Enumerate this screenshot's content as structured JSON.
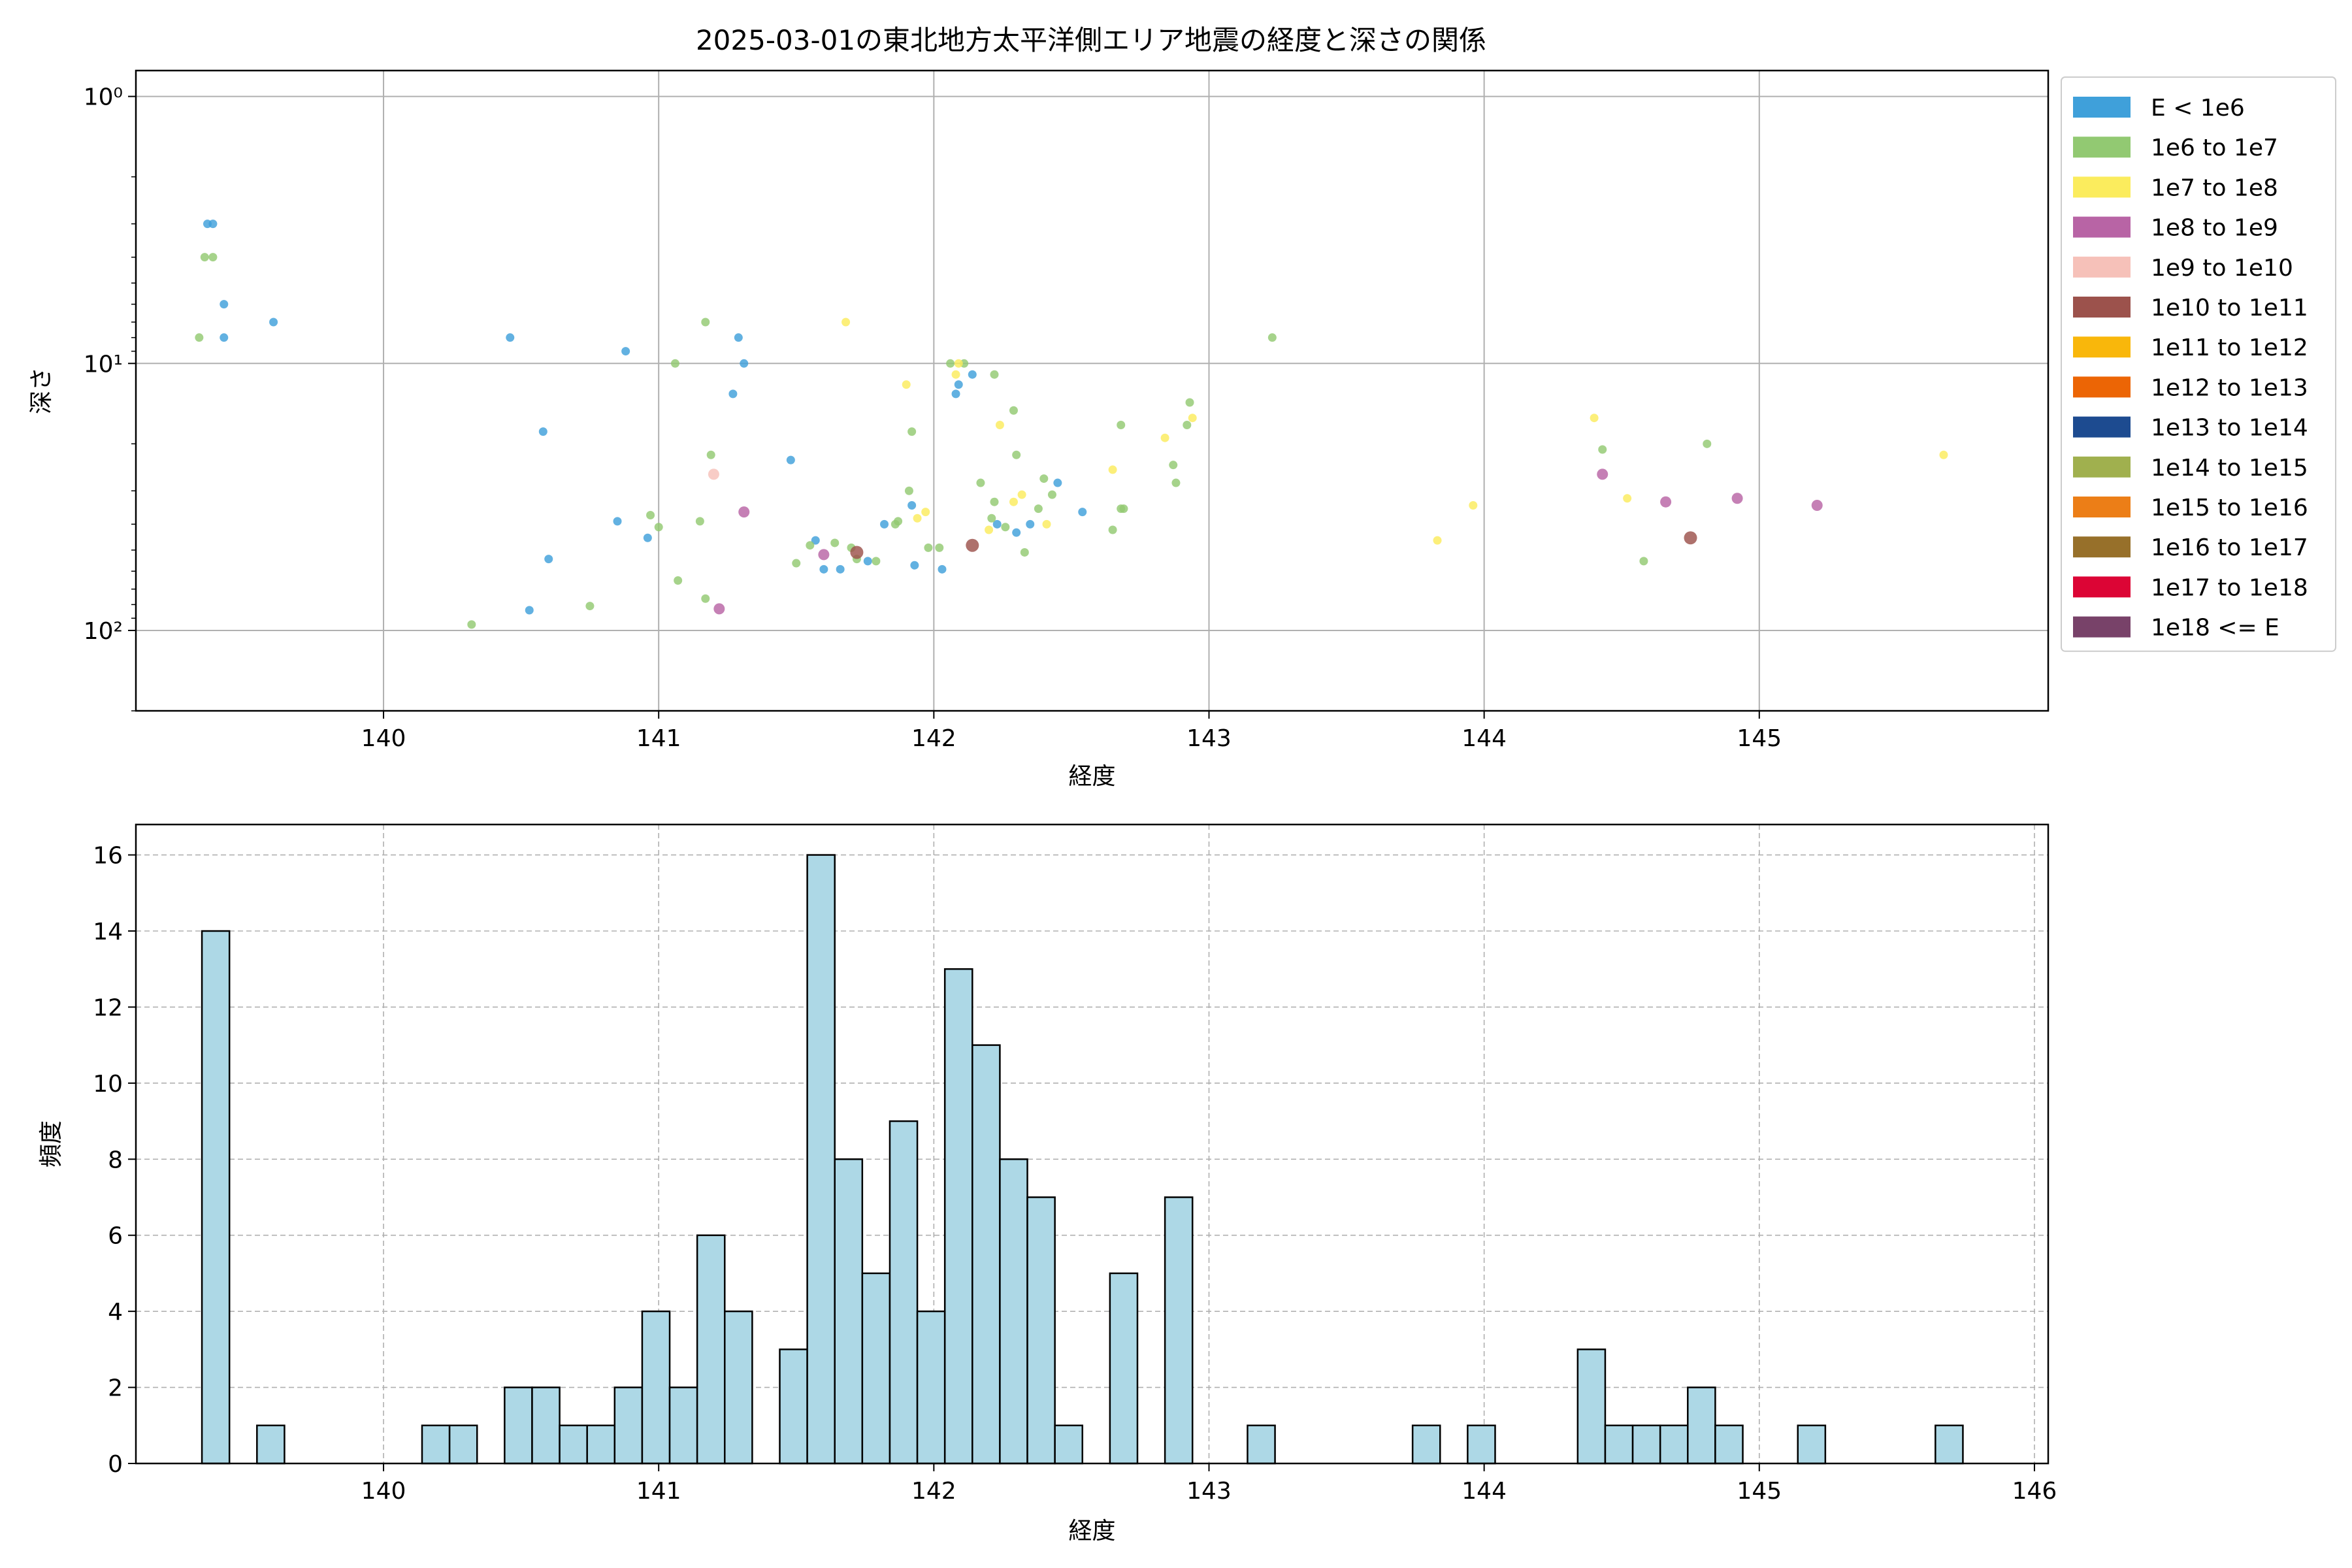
{
  "figure_title": "2025-03-01の東北地方太平洋側エリア地震の経度と深さの関係",
  "chart_data": [
    {
      "type": "scatter",
      "title": "2025-03-01の東北地方太平洋側エリア地震の経度と深さの関係",
      "xlabel": "経度",
      "ylabel": "深さ",
      "xlim": [
        139.1,
        146.05
      ],
      "ylim": [
        200,
        0.8
      ],
      "yscale": "log",
      "y_inverted": true,
      "grid": true,
      "legend_position": "outside-right-top",
      "xticks": [
        140,
        141,
        142,
        143,
        144,
        145
      ],
      "yticks": [
        {
          "value": 1,
          "label": "10⁰"
        },
        {
          "value": 10,
          "label": "10¹"
        },
        {
          "value": 100,
          "label": "10²"
        }
      ],
      "legend": [
        {
          "label": "E < 1e6",
          "color": "#3fa0da"
        },
        {
          "label": "1e6 to 1e7",
          "color": "#92c972"
        },
        {
          "label": "1e7 to 1e8",
          "color": "#fbec5d"
        },
        {
          "label": "1e8 to 1e9",
          "color": "#b864a5"
        },
        {
          "label": "1e9 to 1e10",
          "color": "#f6c1b9"
        },
        {
          "label": "1e10 to 1e11",
          "color": "#9c524c"
        },
        {
          "label": "1e11 to 1e12",
          "color": "#f9b70b"
        },
        {
          "label": "1e12 to 1e13",
          "color": "#ec6505"
        },
        {
          "label": "1e13 to 1e14",
          "color": "#1d4b90"
        },
        {
          "label": "1e14 to 1e15",
          "color": "#a0b04e"
        },
        {
          "label": "1e15 to 1e16",
          "color": "#ec7e17"
        },
        {
          "label": "1e16 to 1e17",
          "color": "#97702a"
        },
        {
          "label": "1e17 to 1e18",
          "color": "#dc0535"
        },
        {
          "label": "1e18 <= E",
          "color": "#784269"
        }
      ],
      "series": [
        {
          "name": "E < 1e6",
          "points": [
            [
              139.36,
              3.0
            ],
            [
              139.38,
              3.0
            ],
            [
              139.42,
              6.0
            ],
            [
              139.42,
              8.0
            ],
            [
              139.6,
              7.0
            ],
            [
              140.46,
              8.0
            ],
            [
              140.58,
              18.0
            ],
            [
              140.88,
              9.0
            ],
            [
              140.85,
              39.0
            ],
            [
              140.96,
              45.0
            ],
            [
              141.27,
              13.0
            ],
            [
              141.29,
              8.0
            ],
            [
              141.31,
              10.0
            ],
            [
              140.53,
              84.0
            ],
            [
              140.6,
              54.0
            ],
            [
              141.48,
              23.0
            ],
            [
              141.57,
              46.0
            ],
            [
              141.6,
              59.0
            ],
            [
              141.66,
              59.0
            ],
            [
              141.76,
              55.0
            ],
            [
              141.82,
              40.0
            ],
            [
              141.92,
              34.0
            ],
            [
              141.93,
              57.0
            ],
            [
              142.03,
              59.0
            ],
            [
              142.08,
              13.0
            ],
            [
              142.09,
              12.0
            ],
            [
              142.14,
              11.0
            ],
            [
              142.35,
              40.0
            ],
            [
              142.45,
              28.0
            ],
            [
              142.54,
              36.0
            ],
            [
              142.23,
              40.0
            ],
            [
              142.3,
              43.0
            ]
          ]
        },
        {
          "name": "1e6 to 1e7",
          "points": [
            [
              139.33,
              8.0
            ],
            [
              139.35,
              4.0
            ],
            [
              139.38,
              4.0
            ],
            [
              140.32,
              95.0
            ],
            [
              140.75,
              81.0
            ],
            [
              141.0,
              41.0
            ],
            [
              141.06,
              10.0
            ],
            [
              140.97,
              37.0
            ],
            [
              141.07,
              65.0
            ],
            [
              141.15,
              39.0
            ],
            [
              141.17,
              7.0
            ],
            [
              141.19,
              22.0
            ],
            [
              141.17,
              76.0
            ],
            [
              141.5,
              56.0
            ],
            [
              141.55,
              48.0
            ],
            [
              141.64,
              47.0
            ],
            [
              141.7,
              49.0
            ],
            [
              141.72,
              54.0
            ],
            [
              141.79,
              55.0
            ],
            [
              141.87,
              39.0
            ],
            [
              141.86,
              40.0
            ],
            [
              141.92,
              18.0
            ],
            [
              141.91,
              30.0
            ],
            [
              141.98,
              49.0
            ],
            [
              142.02,
              49.0
            ],
            [
              142.06,
              10.0
            ],
            [
              142.11,
              10.0
            ],
            [
              142.17,
              28.0
            ],
            [
              142.21,
              38.0
            ],
            [
              142.22,
              11.0
            ],
            [
              142.22,
              33.0
            ],
            [
              142.26,
              41.0
            ],
            [
              142.29,
              15.0
            ],
            [
              142.3,
              22.0
            ],
            [
              142.38,
              35.0
            ],
            [
              142.4,
              27.0
            ],
            [
              142.43,
              31.0
            ],
            [
              142.33,
              51.0
            ],
            [
              142.65,
              42.0
            ],
            [
              142.68,
              17.0
            ],
            [
              142.69,
              35.0
            ],
            [
              142.68,
              35.0
            ],
            [
              142.87,
              24.0
            ],
            [
              142.88,
              28.0
            ],
            [
              142.92,
              17.0
            ],
            [
              142.93,
              14.0
            ],
            [
              143.23,
              8.0
            ],
            [
              144.43,
              21.0
            ],
            [
              144.58,
              55.0
            ],
            [
              144.81,
              20.0
            ]
          ]
        },
        {
          "name": "1e7 to 1e8",
          "points": [
            [
              141.68,
              7.0
            ],
            [
              141.9,
              12.0
            ],
            [
              141.94,
              38.0
            ],
            [
              141.97,
              36.0
            ],
            [
              142.08,
              11.0
            ],
            [
              142.09,
              10.0
            ],
            [
              142.2,
              42.0
            ],
            [
              142.24,
              17.0
            ],
            [
              142.29,
              33.0
            ],
            [
              142.32,
              31.0
            ],
            [
              142.41,
              40.0
            ],
            [
              142.65,
              25.0
            ],
            [
              142.84,
              19.0
            ],
            [
              142.94,
              16.0
            ],
            [
              143.83,
              46.0
            ],
            [
              143.96,
              34.0
            ],
            [
              144.4,
              16.0
            ],
            [
              144.52,
              32.0
            ],
            [
              145.67,
              22.0
            ]
          ]
        },
        {
          "name": "1e8 to 1e9",
          "points": [
            [
              141.22,
              83.0
            ],
            [
              141.31,
              36.0
            ],
            [
              141.6,
              52.0
            ],
            [
              144.43,
              26.0
            ],
            [
              144.66,
              33.0
            ],
            [
              144.92,
              32.0
            ],
            [
              145.21,
              34.0
            ]
          ]
        },
        {
          "name": "1e9 to 1e10",
          "points": [
            [
              141.2,
              26.0
            ]
          ]
        },
        {
          "name": "1e10 to 1e11",
          "points": [
            [
              141.72,
              51.0
            ],
            [
              142.14,
              48.0
            ],
            [
              144.75,
              45.0
            ]
          ]
        }
      ]
    },
    {
      "type": "bar",
      "subtype": "histogram",
      "xlabel": "経度",
      "ylabel": "頻度",
      "xlim": [
        139.1,
        146.05
      ],
      "ylim": [
        0,
        16.8
      ],
      "grid": true,
      "xticks": [
        140,
        141,
        142,
        143,
        144,
        145,
        146
      ],
      "yticks": [
        0,
        2,
        4,
        6,
        8,
        10,
        12,
        14,
        16
      ],
      "bins": [
        {
          "x0": 139.34,
          "x1": 139.44,
          "count": 14
        },
        {
          "x0": 139.54,
          "x1": 139.64,
          "count": 1
        },
        {
          "x0": 140.14,
          "x1": 140.24,
          "count": 1
        },
        {
          "x0": 140.24,
          "x1": 140.34,
          "count": 1
        },
        {
          "x0": 140.44,
          "x1": 140.54,
          "count": 2
        },
        {
          "x0": 140.54,
          "x1": 140.64,
          "count": 2
        },
        {
          "x0": 140.64,
          "x1": 140.74,
          "count": 1
        },
        {
          "x0": 140.74,
          "x1": 140.84,
          "count": 1
        },
        {
          "x0": 140.84,
          "x1": 140.94,
          "count": 2
        },
        {
          "x0": 140.94,
          "x1": 141.04,
          "count": 4
        },
        {
          "x0": 141.04,
          "x1": 141.14,
          "count": 2
        },
        {
          "x0": 141.14,
          "x1": 141.24,
          "count": 6
        },
        {
          "x0": 141.24,
          "x1": 141.34,
          "count": 4
        },
        {
          "x0": 141.44,
          "x1": 141.54,
          "count": 3
        },
        {
          "x0": 141.54,
          "x1": 141.64,
          "count": 16
        },
        {
          "x0": 141.64,
          "x1": 141.74,
          "count": 8
        },
        {
          "x0": 141.74,
          "x1": 141.84,
          "count": 5
        },
        {
          "x0": 141.84,
          "x1": 141.94,
          "count": 9
        },
        {
          "x0": 141.94,
          "x1": 142.04,
          "count": 4
        },
        {
          "x0": 142.04,
          "x1": 142.14,
          "count": 13
        },
        {
          "x0": 142.14,
          "x1": 142.24,
          "count": 11
        },
        {
          "x0": 142.24,
          "x1": 142.34,
          "count": 8
        },
        {
          "x0": 142.34,
          "x1": 142.44,
          "count": 7
        },
        {
          "x0": 142.44,
          "x1": 142.54,
          "count": 1
        },
        {
          "x0": 142.64,
          "x1": 142.74,
          "count": 5
        },
        {
          "x0": 142.84,
          "x1": 142.94,
          "count": 7
        },
        {
          "x0": 143.14,
          "x1": 143.24,
          "count": 1
        },
        {
          "x0": 143.74,
          "x1": 143.84,
          "count": 1
        },
        {
          "x0": 143.94,
          "x1": 144.04,
          "count": 1
        },
        {
          "x0": 144.34,
          "x1": 144.44,
          "count": 3
        },
        {
          "x0": 144.44,
          "x1": 144.54,
          "count": 1
        },
        {
          "x0": 144.54,
          "x1": 144.64,
          "count": 1
        },
        {
          "x0": 144.64,
          "x1": 144.74,
          "count": 1
        },
        {
          "x0": 144.74,
          "x1": 144.84,
          "count": 2
        },
        {
          "x0": 144.84,
          "x1": 144.94,
          "count": 1
        },
        {
          "x0": 145.14,
          "x1": 145.24,
          "count": 1
        },
        {
          "x0": 145.64,
          "x1": 145.74,
          "count": 1
        }
      ],
      "bar_color": "#add8e6",
      "edge_color": "#000000"
    }
  ]
}
